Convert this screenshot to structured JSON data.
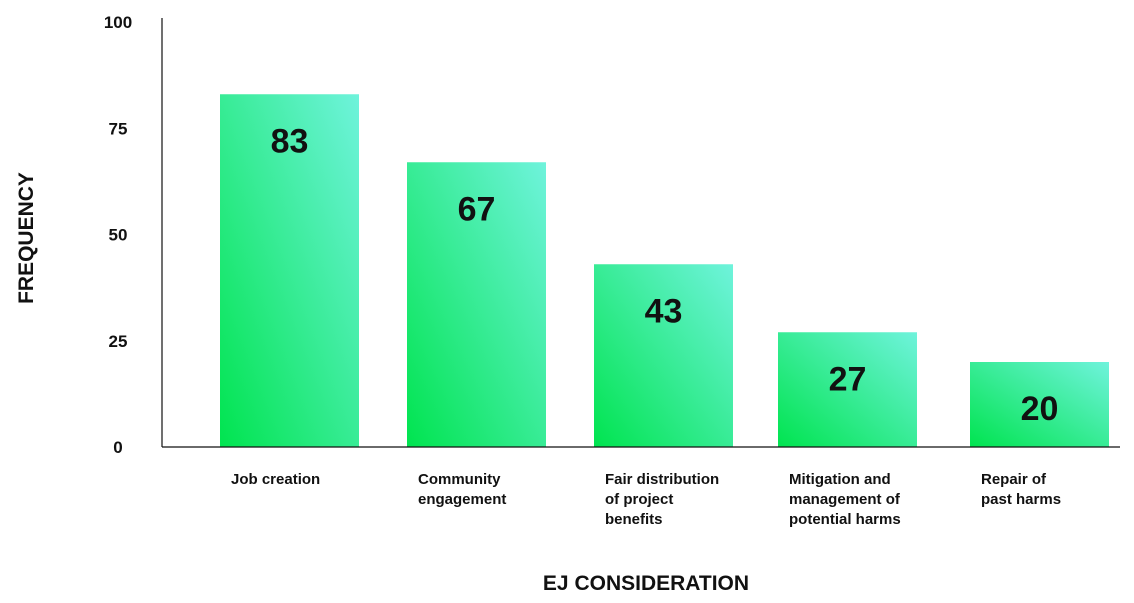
{
  "chart_data": {
    "type": "bar",
    "title": "",
    "xlabel": "EJ CONSIDERATION",
    "ylabel": "FREQUENCY",
    "ylim": [
      0,
      100
    ],
    "yticks": [
      0,
      25,
      50,
      75,
      100
    ],
    "categories": [
      [
        "Job creation"
      ],
      [
        "Community",
        "engagement"
      ],
      [
        "Fair distribution",
        "of project",
        "benefits"
      ],
      [
        "Mitigation and",
        "management of",
        "potential harms"
      ],
      [
        "Repair of",
        "past harms"
      ]
    ],
    "values": [
      83,
      67,
      43,
      27,
      20
    ],
    "data_labels": [
      "83",
      "67",
      "43",
      "27",
      "20"
    ],
    "grid": false,
    "legend": "none",
    "colors": {
      "bar_gradient_start": "#00e44f",
      "bar_gradient_end": "#6ff3dc",
      "axis": "#111111",
      "text": "#111111"
    }
  }
}
